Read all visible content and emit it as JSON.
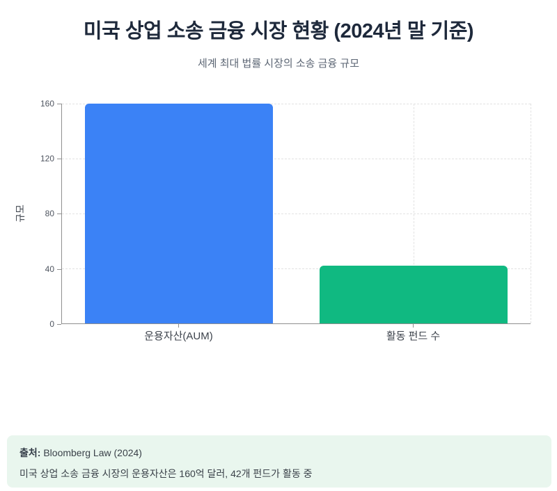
{
  "header": {
    "title": "미국 상업 소송 금융 시장 현황 (2024년 말 기준)",
    "subtitle": "세계 최대 법률 시장의 소송 금융 규모"
  },
  "chart_data": {
    "type": "bar",
    "title": "미국 상업 소송 금융 시장 현황 (2024년 말 기준)",
    "subtitle": "세계 최대 법률 시장의 소송 금융 규모",
    "categories": [
      "운용자산(AUM)",
      "활동 펀드 수"
    ],
    "values": [
      160,
      42
    ],
    "colors": [
      "#3b82f6",
      "#10b981"
    ],
    "xlabel": "",
    "ylabel": "규모",
    "ylim": [
      0,
      160
    ],
    "yticks": [
      "0",
      "40",
      "80",
      "120",
      "160"
    ],
    "grid": "dashed",
    "legend_position": "none"
  },
  "footer": {
    "source_label": "출처:",
    "source_value": "Bloomberg Law (2024)",
    "note": "미국 상업 소송 금융 시장의 운용자산은 160억 달러, 42개 펀드가 활동 중"
  }
}
